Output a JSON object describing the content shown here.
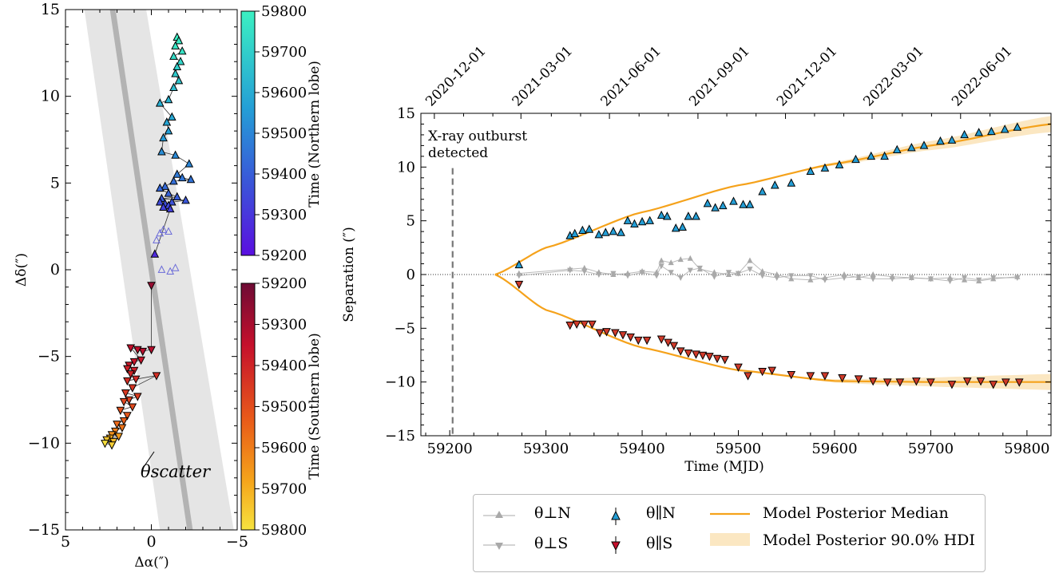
{
  "chart_data": [
    {
      "type": "scatter",
      "panel": "sky-position",
      "xlabel": "Δα(″)",
      "ylabel": "Δδ(″)",
      "xlim": [
        5,
        -5
      ],
      "ylim": [
        -15,
        15
      ],
      "xticks": [
        "5",
        "0",
        "−5"
      ],
      "yticks": [
        "15",
        "10",
        "5",
        "0",
        "−5",
        "−10",
        "−15"
      ],
      "annotation": "θscatter",
      "north_points": [
        {
          "x": -1.5,
          "y": 13.4,
          "t": 59790
        },
        {
          "x": -1.6,
          "y": 13.2,
          "t": 59780
        },
        {
          "x": -1.4,
          "y": 12.9,
          "t": 59770
        },
        {
          "x": -1.8,
          "y": 12.6,
          "t": 59760
        },
        {
          "x": -1.3,
          "y": 12.3,
          "t": 59740
        },
        {
          "x": -1.7,
          "y": 12.0,
          "t": 59720
        },
        {
          "x": -1.5,
          "y": 11.7,
          "t": 59700
        },
        {
          "x": -1.4,
          "y": 11.3,
          "t": 59690
        },
        {
          "x": -1.6,
          "y": 10.9,
          "t": 59670
        },
        {
          "x": -1.3,
          "y": 10.5,
          "t": 59650
        },
        {
          "x": -1.0,
          "y": 9.8,
          "t": 59620
        },
        {
          "x": -0.5,
          "y": 9.6,
          "t": 59610
        },
        {
          "x": -1.2,
          "y": 8.8,
          "t": 59590
        },
        {
          "x": -0.9,
          "y": 8.5,
          "t": 59580
        },
        {
          "x": -1.0,
          "y": 8.0,
          "t": 59560
        },
        {
          "x": -0.7,
          "y": 7.6,
          "t": 59550
        },
        {
          "x": -0.6,
          "y": 6.8,
          "t": 59520
        },
        {
          "x": -1.4,
          "y": 6.6,
          "t": 59510
        },
        {
          "x": -2.2,
          "y": 6.1,
          "t": 59500
        },
        {
          "x": -1.5,
          "y": 5.5,
          "t": 59470
        },
        {
          "x": -1.8,
          "y": 5.3,
          "t": 59460
        },
        {
          "x": -2.3,
          "y": 5.2,
          "t": 59450
        },
        {
          "x": -1.3,
          "y": 5.1,
          "t": 59440
        },
        {
          "x": -0.8,
          "y": 4.8,
          "t": 59430
        },
        {
          "x": -0.5,
          "y": 4.7,
          "t": 59420
        },
        {
          "x": -1.0,
          "y": 4.4,
          "t": 59410
        },
        {
          "x": -1.5,
          "y": 4.2,
          "t": 59400
        },
        {
          "x": -0.6,
          "y": 4.1,
          "t": 59390
        },
        {
          "x": -2.0,
          "y": 4.0,
          "t": 59380
        },
        {
          "x": -1.2,
          "y": 3.9,
          "t": 59370
        },
        {
          "x": -0.8,
          "y": 3.8,
          "t": 59360
        },
        {
          "x": -0.5,
          "y": 3.9,
          "t": 59350
        },
        {
          "x": -1.0,
          "y": 3.7,
          "t": 59340
        },
        {
          "x": -0.7,
          "y": 3.6,
          "t": 59330
        },
        {
          "x": -1.1,
          "y": 3.5,
          "t": 59325
        },
        {
          "x": -0.2,
          "y": 0.9,
          "t": 59270
        }
      ],
      "north_perp_points": [
        {
          "x": -0.7,
          "y": 2.3
        },
        {
          "x": -1.0,
          "y": 2.2
        },
        {
          "x": -0.5,
          "y": 2.1
        },
        {
          "x": -0.3,
          "y": 1.7
        },
        {
          "x": -1.4,
          "y": 0.1
        },
        {
          "x": -1.1,
          "y": -0.1
        },
        {
          "x": -0.6,
          "y": 0.0
        }
      ],
      "south_points": [
        {
          "x": 0.0,
          "y": -0.9,
          "t": 59270
        },
        {
          "x": 0.0,
          "y": -4.6,
          "t": 59325
        },
        {
          "x": 0.5,
          "y": -4.7,
          "t": 59330
        },
        {
          "x": 0.8,
          "y": -4.6,
          "t": 59340
        },
        {
          "x": 1.2,
          "y": -4.5,
          "t": 59345
        },
        {
          "x": 0.6,
          "y": -5.2,
          "t": 59360
        },
        {
          "x": 1.0,
          "y": -5.3,
          "t": 59365
        },
        {
          "x": 1.3,
          "y": -5.5,
          "t": 59375
        },
        {
          "x": 1.0,
          "y": -5.8,
          "t": 59385
        },
        {
          "x": 1.4,
          "y": -5.7,
          "t": 59390
        },
        {
          "x": 1.2,
          "y": -6.0,
          "t": 59400
        },
        {
          "x": 0.9,
          "y": -6.3,
          "t": 59410
        },
        {
          "x": 1.4,
          "y": -6.4,
          "t": 59420
        },
        {
          "x": -0.3,
          "y": -6.1,
          "t": 59425
        },
        {
          "x": 1.1,
          "y": -6.8,
          "t": 59440
        },
        {
          "x": 1.5,
          "y": -7.1,
          "t": 59450
        },
        {
          "x": 0.8,
          "y": -7.3,
          "t": 59460
        },
        {
          "x": 1.3,
          "y": -7.5,
          "t": 59470
        },
        {
          "x": 1.6,
          "y": -7.6,
          "t": 59480
        },
        {
          "x": 1.1,
          "y": -7.9,
          "t": 59490
        },
        {
          "x": 1.8,
          "y": -8.1,
          "t": 59510
        },
        {
          "x": 1.4,
          "y": -8.4,
          "t": 59520
        },
        {
          "x": 1.6,
          "y": -8.7,
          "t": 59540
        },
        {
          "x": 2.0,
          "y": -8.9,
          "t": 59560
        },
        {
          "x": 1.7,
          "y": -9.1,
          "t": 59580
        },
        {
          "x": 2.1,
          "y": -9.3,
          "t": 59600
        },
        {
          "x": 2.3,
          "y": -9.5,
          "t": 59640
        },
        {
          "x": 1.9,
          "y": -9.6,
          "t": 59660
        },
        {
          "x": 2.4,
          "y": -9.7,
          "t": 59690
        },
        {
          "x": 2.2,
          "y": -9.9,
          "t": 59720
        },
        {
          "x": 2.6,
          "y": -9.8,
          "t": 59740
        },
        {
          "x": 2.3,
          "y": -10.1,
          "t": 59760
        },
        {
          "x": 2.7,
          "y": -10.0,
          "t": 59790
        }
      ]
    },
    {
      "type": "scatter",
      "panel": "separation-vs-time",
      "xlabel": "Time (MJD)",
      "ylabel": "Separation (″)",
      "xlim": [
        59170,
        59825
      ],
      "ylim": [
        -15,
        15
      ],
      "xticks": [
        59200,
        59300,
        59400,
        59500,
        59600,
        59700,
        59800
      ],
      "yticks": [
        -15,
        -10,
        -5,
        0,
        5,
        10,
        15
      ],
      "top_ticks": [
        {
          "mjd": 59184,
          "label": "2020-12-01"
        },
        {
          "mjd": 59274,
          "label": "2021-03-01"
        },
        {
          "mjd": 59366,
          "label": "2021-06-01"
        },
        {
          "mjd": 59458,
          "label": "2021-09-01"
        },
        {
          "mjd": 59549,
          "label": "2021-12-01"
        },
        {
          "mjd": 59639,
          "label": "2022-03-01"
        },
        {
          "mjd": 59731,
          "label": "2022-06-01"
        }
      ],
      "annotation": "X-ray outburst detected",
      "outburst_mjd": 59203,
      "series": [
        {
          "name": "θ∥N",
          "x": [
            59272,
            59325,
            59330,
            59338,
            59345,
            59355,
            59362,
            59370,
            59378,
            59385,
            59392,
            59400,
            59408,
            59420,
            59426,
            59435,
            59442,
            59448,
            59456,
            59468,
            59476,
            59484,
            59495,
            59505,
            59512,
            59525,
            59538,
            59555,
            59575,
            59590,
            59605,
            59622,
            59638,
            59652,
            59665,
            59680,
            59693,
            59710,
            59722,
            59735,
            59750,
            59763,
            59777,
            59790
          ],
          "y": [
            0.9,
            3.6,
            3.8,
            4.1,
            4.2,
            3.7,
            3.9,
            4.0,
            3.9,
            5.0,
            4.7,
            4.9,
            5.0,
            5.5,
            5.4,
            4.3,
            4.4,
            5.4,
            5.4,
            6.6,
            6.2,
            6.4,
            6.8,
            6.5,
            6.5,
            7.7,
            8.3,
            8.5,
            9.6,
            9.9,
            10.2,
            10.7,
            11.0,
            11.0,
            11.6,
            11.8,
            12.0,
            12.4,
            12.5,
            13.0,
            13.2,
            13.3,
            13.5,
            13.7
          ]
        },
        {
          "name": "θ∥S",
          "x": [
            59272,
            59325,
            59332,
            59340,
            59348,
            59356,
            59363,
            59372,
            59380,
            59388,
            59396,
            59405,
            59420,
            59427,
            59433,
            59440,
            59448,
            59456,
            59463,
            59470,
            59478,
            59486,
            59500,
            59510,
            59525,
            59535,
            59555,
            59575,
            59590,
            59608,
            59625,
            59640,
            59655,
            59668,
            59685,
            59700,
            59722,
            59738,
            59752,
            59765,
            59778,
            59792
          ],
          "y": [
            -0.9,
            -4.7,
            -4.6,
            -4.6,
            -4.6,
            -5.4,
            -5.3,
            -5.4,
            -5.6,
            -5.8,
            -6.1,
            -6.1,
            -6.0,
            -6.3,
            -6.6,
            -7.1,
            -7.3,
            -7.4,
            -7.5,
            -7.6,
            -7.8,
            -7.9,
            -8.6,
            -9.4,
            -9.0,
            -8.9,
            -9.3,
            -9.4,
            -9.4,
            -9.6,
            -9.7,
            -9.9,
            -10.0,
            -10.0,
            -9.9,
            -10.0,
            -10.2,
            -9.9,
            -9.9,
            -10.2,
            -10.0,
            -10.0
          ]
        },
        {
          "name": "θ⊥N",
          "x": [
            59272,
            59325,
            59340,
            59355,
            59370,
            59385,
            59400,
            59415,
            59420,
            59430,
            59440,
            59450,
            59460,
            59475,
            59490,
            59500,
            59512,
            59525,
            59540,
            59555,
            59575,
            59590,
            59610,
            59625,
            59640,
            59660,
            59680,
            59700,
            59720,
            59735,
            59750,
            59765,
            59790
          ],
          "y": [
            0.1,
            0.5,
            0.6,
            0.2,
            0.0,
            0.1,
            0.3,
            0.2,
            1.3,
            1.1,
            1.4,
            1.5,
            0.5,
            0.2,
            0.0,
            0.1,
            1.3,
            0.3,
            0.0,
            -0.4,
            -0.5,
            -0.3,
            0.0,
            -0.3,
            0.0,
            -0.2,
            -0.3,
            -0.4,
            -0.3,
            -0.5,
            -0.6,
            -0.4,
            -0.2
          ]
        },
        {
          "name": "θ⊥S",
          "x": [
            59272,
            59325,
            59340,
            59355,
            59370,
            59385,
            59400,
            59415,
            59420,
            59430,
            59440,
            59450,
            59460,
            59475,
            59490,
            59500,
            59512,
            59525,
            59540,
            59555,
            59575,
            59590,
            59610,
            59625,
            59640,
            59660,
            59680,
            59700,
            59720,
            59735,
            59750,
            59765,
            59790
          ],
          "y": [
            -0.1,
            0.4,
            0.3,
            0.0,
            0.1,
            -0.1,
            0.2,
            -0.1,
            0.8,
            0.2,
            -0.3,
            0.4,
            0.6,
            -0.2,
            0.2,
            0.1,
            0.5,
            -0.1,
            -0.3,
            -0.1,
            -0.1,
            -0.5,
            -0.3,
            -0.2,
            -0.4,
            -0.4,
            -0.3,
            -0.4,
            -0.6,
            -0.3,
            -0.5,
            -0.3,
            -0.3
          ]
        }
      ],
      "model_median_north": {
        "x": [
          59247,
          59300,
          59400,
          59500,
          59600,
          59700,
          59825
        ],
        "y": [
          0,
          2.5,
          5.8,
          8.3,
          10.3,
          12.0,
          14.0
        ]
      },
      "model_median_south": {
        "x": [
          59247,
          59300,
          59400,
          59500,
          59600,
          59700,
          59825
        ],
        "y": [
          0,
          -3.3,
          -6.8,
          -8.9,
          -9.9,
          -10.0,
          -10.0
        ]
      },
      "legend": [
        {
          "label": "θ⊥N"
        },
        {
          "label": "θ⊥S"
        },
        {
          "label": "θ∥N"
        },
        {
          "label": "θ∥S"
        },
        {
          "label": "Model Posterior Median"
        },
        {
          "label": "Model Posterior 90.0% HDI"
        }
      ]
    }
  ],
  "colorbars": [
    {
      "label": "Time (Northern lobe)",
      "ticks": [
        "59800",
        "59700",
        "59600",
        "59500",
        "59400",
        "59300",
        "59200"
      ]
    },
    {
      "label": "Time (Southern lobe)",
      "ticks": [
        "59200",
        "59300",
        "59400",
        "59500",
        "59600",
        "59700",
        "59800"
      ]
    }
  ],
  "colors": {
    "model": "#f5a21b",
    "hdi": "#fbe7c2",
    "perp": "#a9a9a9",
    "outburst": "#777777"
  }
}
